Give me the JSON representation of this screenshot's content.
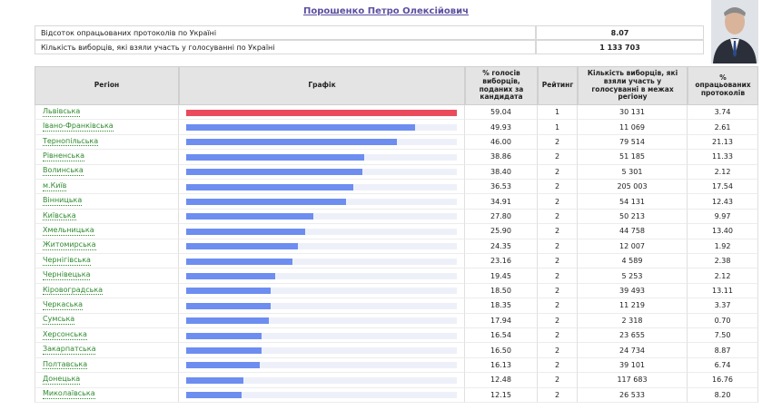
{
  "header": {
    "title": "Порошенко Петро Олексійович"
  },
  "summary": {
    "rows": [
      [
        "Відсоток опрацьованих протоколів по Україні",
        "8.07"
      ],
      [
        "Кількість виборців, які взяли участь у голосуванні по Україні",
        "1 133 703"
      ]
    ]
  },
  "table": {
    "columns": [
      "Регіон",
      "Графік",
      "% голосів виборців, поданих за кандидата",
      "Рейтинг",
      "Кількість виборців, які взяли участь у голосуванні в межах регіону",
      "% опрацьованих протоколів"
    ],
    "rows": [
      [
        "Львівська",
        "59.04",
        "1",
        "30 131",
        "3.74"
      ],
      [
        "Івано-Франківська",
        "49.93",
        "1",
        "11 069",
        "2.61"
      ],
      [
        "Тернопільська",
        "46.00",
        "2",
        "79 514",
        "21.13"
      ],
      [
        "Рівненська",
        "38.86",
        "2",
        "51 185",
        "11.33"
      ],
      [
        "Волинська",
        "38.40",
        "2",
        "5 301",
        "2.12"
      ],
      [
        "м.Київ",
        "36.53",
        "2",
        "205 003",
        "17.54"
      ],
      [
        "Вінницька",
        "34.91",
        "2",
        "54 131",
        "12.43"
      ],
      [
        "Київська",
        "27.80",
        "2",
        "50 213",
        "9.97"
      ],
      [
        "Хмельницька",
        "25.90",
        "2",
        "44 758",
        "13.40"
      ],
      [
        "Житомирська",
        "24.35",
        "2",
        "12 007",
        "1.92"
      ],
      [
        "Чернігівська",
        "23.16",
        "2",
        "4 589",
        "2.38"
      ],
      [
        "Чернівецька",
        "19.45",
        "2",
        "5 253",
        "2.12"
      ],
      [
        "Кіровоградська",
        "18.50",
        "2",
        "39 493",
        "13.11"
      ],
      [
        "Черкаська",
        "18.35",
        "2",
        "11 219",
        "3.37"
      ],
      [
        "Сумська",
        "17.94",
        "2",
        "2 318",
        "0.70"
      ],
      [
        "Херсонська",
        "16.54",
        "2",
        "23 655",
        "7.50"
      ],
      [
        "Закарпатська",
        "16.50",
        "2",
        "24 734",
        "8.87"
      ],
      [
        "Полтавська",
        "16.13",
        "2",
        "39 101",
        "6.74"
      ],
      [
        "Донецька",
        "12.48",
        "2",
        "117 683",
        "16.76"
      ],
      [
        "Миколаївська",
        "12.15",
        "2",
        "26 533",
        "8.20"
      ]
    ]
  },
  "colors": {
    "leader": "#ea4a5c",
    "bar": "#6d8ef0",
    "track": "#eef0f9"
  }
}
